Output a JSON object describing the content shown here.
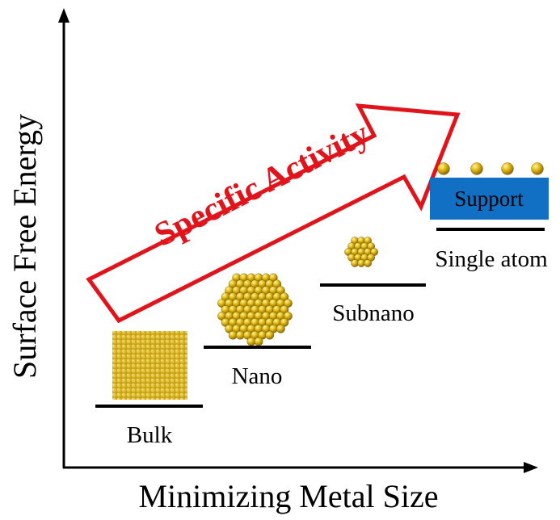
{
  "axes": {
    "x_title": "Minimizing Metal Size",
    "y_title": "Surface Free Energy"
  },
  "trend_arrow": {
    "label": "Specific Activity"
  },
  "stages": [
    {
      "label": "Bulk"
    },
    {
      "label": "Nano"
    },
    {
      "label": "Subnano"
    },
    {
      "label": "Single atom"
    }
  ],
  "support_label": "Support",
  "colors": {
    "axis": "#000000",
    "arrow": "#e1141b",
    "gold": "#d4ad10",
    "support": "#1170c4"
  }
}
